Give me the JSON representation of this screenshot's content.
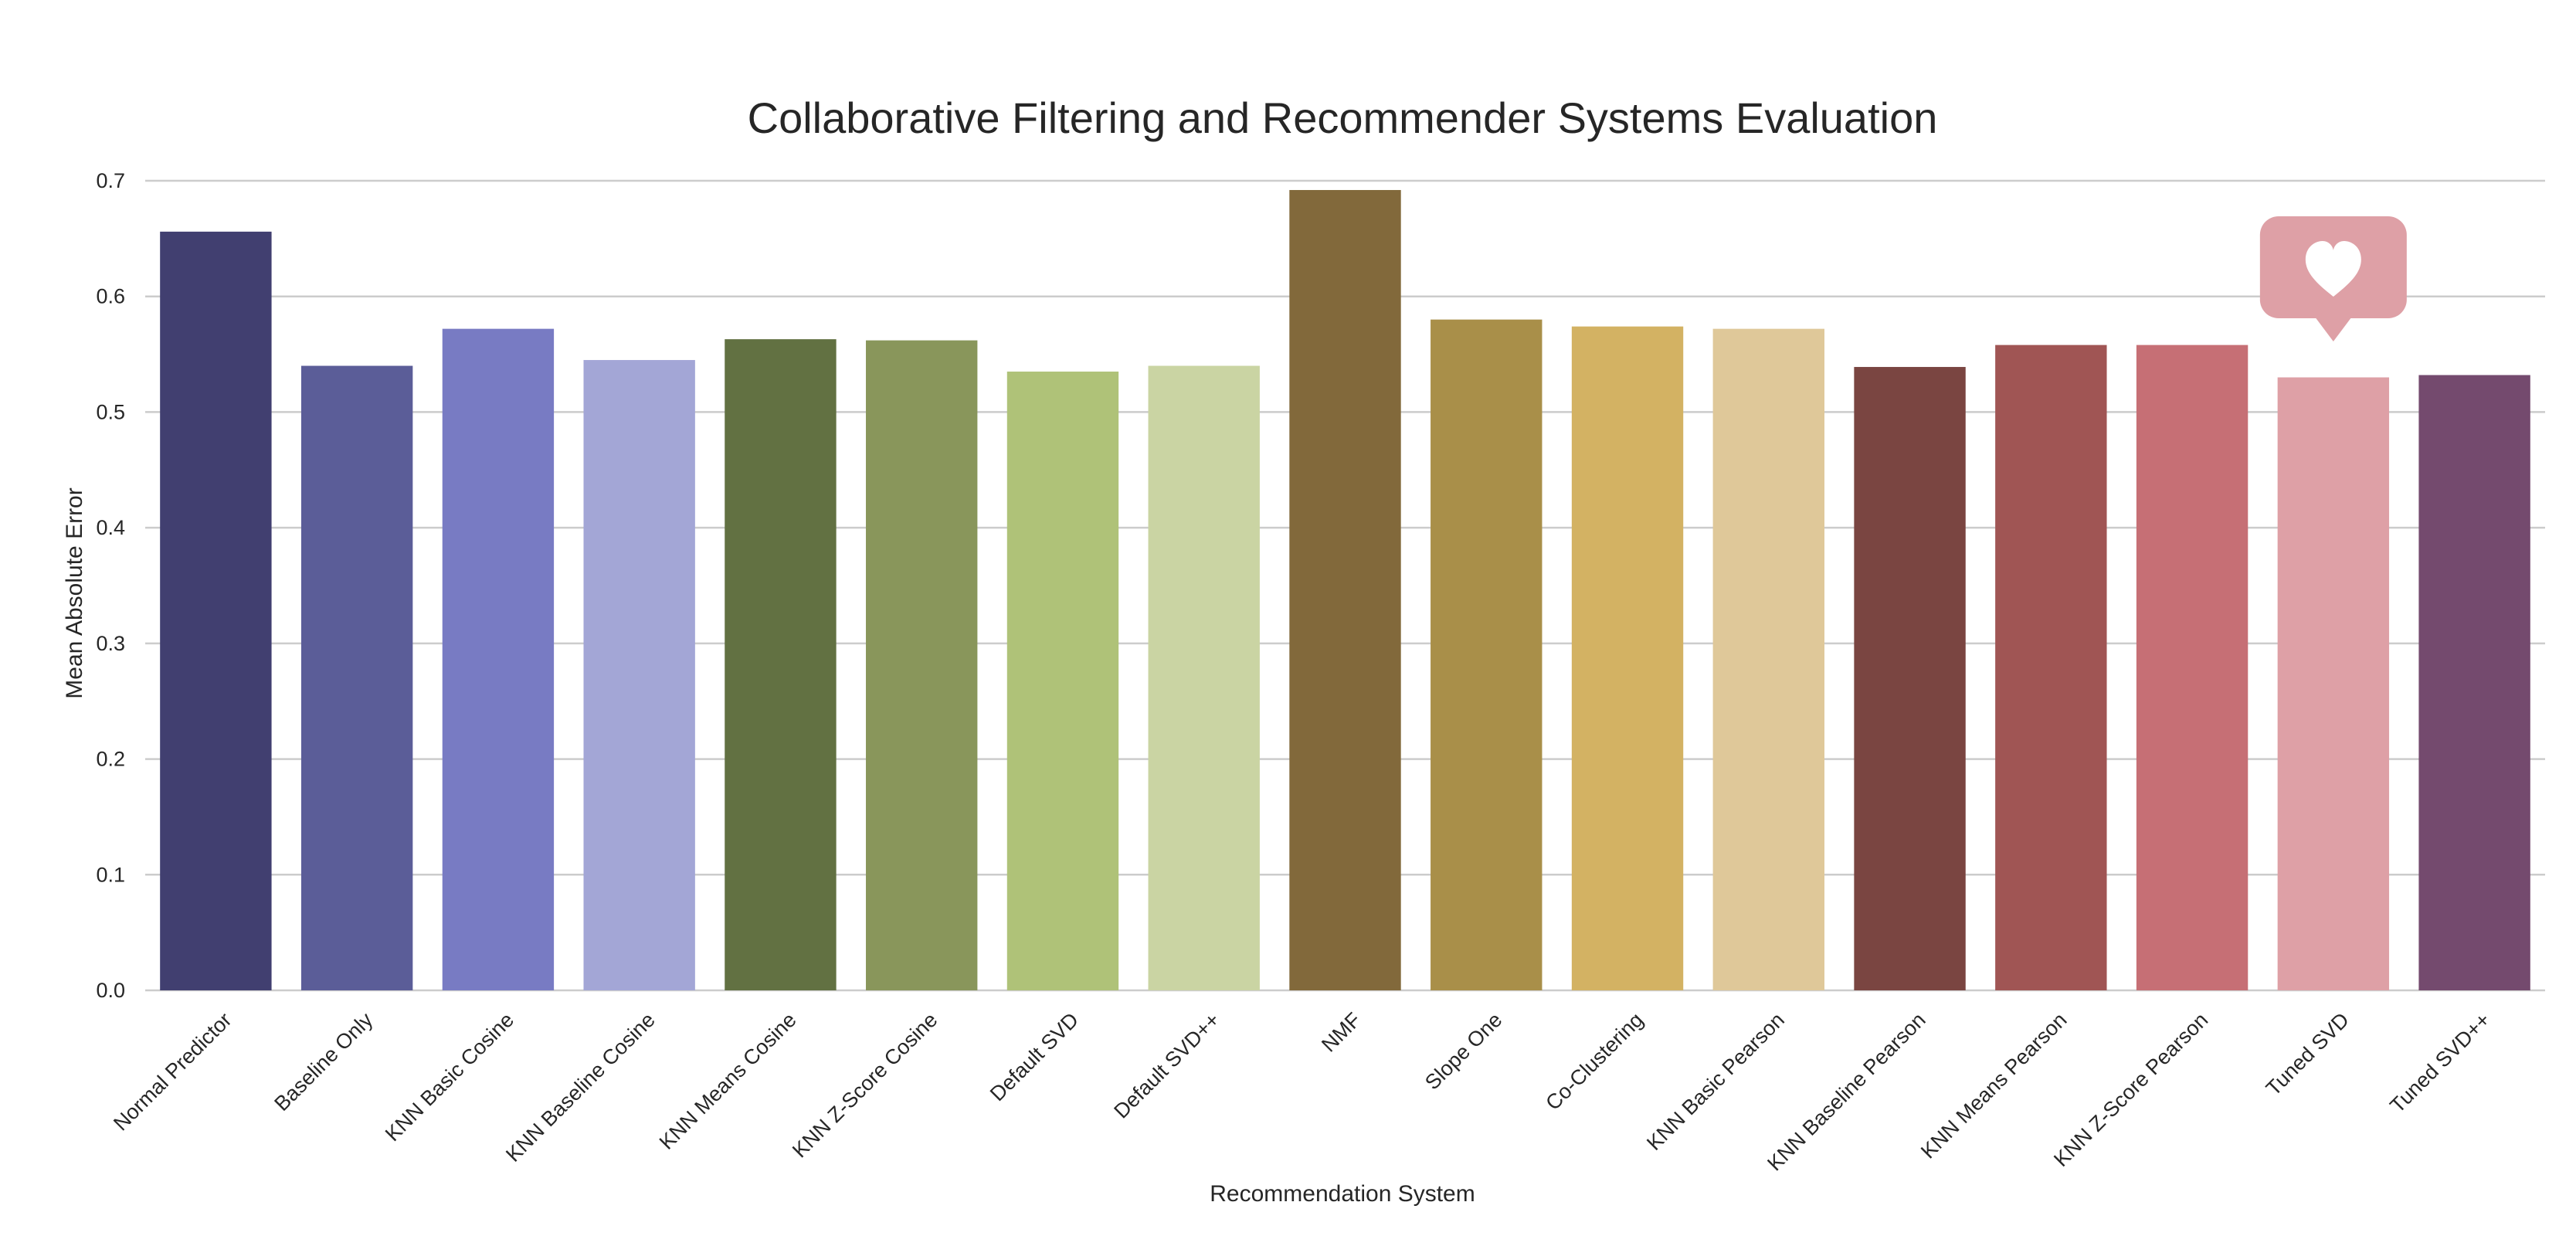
{
  "chart_data": {
    "type": "bar",
    "title": "Collaborative Filtering and Recommender Systems Evaluation",
    "xlabel": "Recommendation System",
    "ylabel": "Mean Absolute Error",
    "ylim": [
      0,
      0.7
    ],
    "yticks": [
      "0.0",
      "0.1",
      "0.2",
      "0.3",
      "0.4",
      "0.5",
      "0.6",
      "0.7"
    ],
    "grid": "horizontal",
    "categories": [
      "Normal Predictor",
      "Baseline Only",
      "KNN Basic Cosine",
      "KNN Baseline Cosine",
      "KNN Means Cosine",
      "KNN Z-Score Cosine",
      "Default SVD",
      "Default SVD++",
      "NMF",
      "Slope One",
      "Co-Clustering",
      "KNN Basic Pearson",
      "KNN Baseline Pearson",
      "KNN Means Pearson",
      "KNN Z-Score Pearson",
      "Tuned SVD",
      "Tuned SVD++"
    ],
    "values": [
      0.656,
      0.54,
      0.572,
      0.545,
      0.563,
      0.562,
      0.535,
      0.54,
      0.692,
      0.58,
      0.574,
      0.572,
      0.539,
      0.558,
      0.558,
      0.53,
      0.532
    ],
    "colors": [
      "#413f70",
      "#5b5d98",
      "#787bc3",
      "#a3a6d6",
      "#627142",
      "#89965b",
      "#afc278",
      "#cad4a3",
      "#82693b",
      "#a98f49",
      "#d3b263",
      "#dfc899",
      "#7a4541",
      "#a05554",
      "#c66f75",
      "#dea0a6",
      "#744a6e"
    ],
    "annotation": {
      "category": "Tuned SVD",
      "icon": "heart-icon",
      "color": "#dea0a6"
    }
  }
}
